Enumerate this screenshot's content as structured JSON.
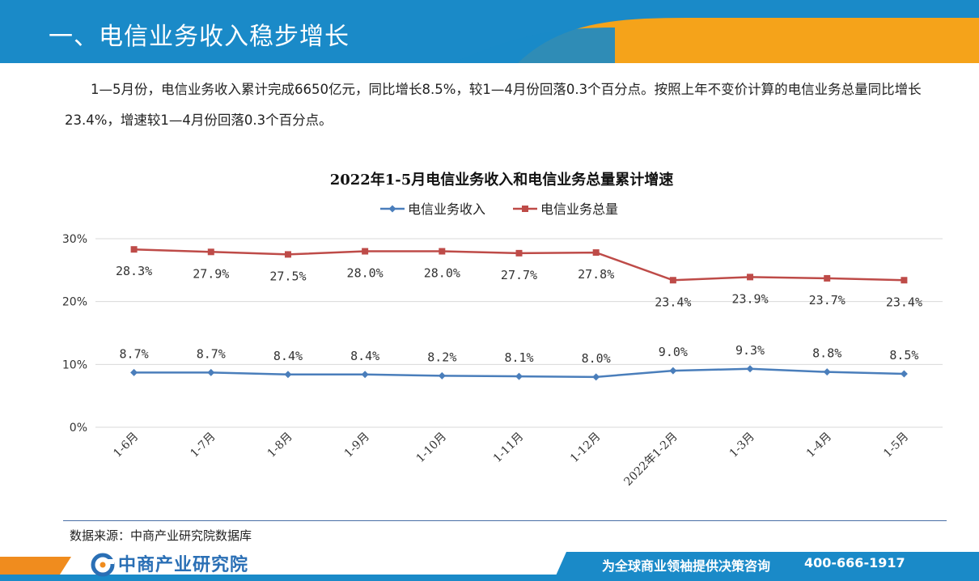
{
  "header": {
    "title": "一、电信业务收入稳步增长"
  },
  "intro": {
    "text": "1—5月份，电信业务收入累计完成6650亿元，同比增长8.5%，较1—4月份回落0.3个百分点。按照上年不变价计算的电信业务总量同比增长23.4%，增速较1—4月份回落0.3个百分点。"
  },
  "chart_data": {
    "type": "line",
    "title": "2022年1-5月电信业务收入和电信业务总量累计增速",
    "categories": [
      "1-6月",
      "1-7月",
      "1-8月",
      "1-9月",
      "1-10月",
      "1-11月",
      "1-12月",
      "2022年1-2月",
      "1-3月",
      "1-4月",
      "1-5月"
    ],
    "series": [
      {
        "name": "电信业务收入",
        "color": "#4a7ebb",
        "marker": "diamond",
        "values": [
          8.7,
          8.7,
          8.4,
          8.4,
          8.2,
          8.1,
          8.0,
          9.0,
          9.3,
          8.8,
          8.5
        ],
        "labels": [
          "8.7%",
          "8.7%",
          "8.4%",
          "8.4%",
          "8.2%",
          "8.1%",
          "8.0%",
          "9.0%",
          "9.3%",
          "8.8%",
          "8.5%"
        ]
      },
      {
        "name": "电信业务总量",
        "color": "#be4b48",
        "marker": "square",
        "values": [
          28.3,
          27.9,
          27.5,
          28.0,
          28.0,
          27.7,
          27.8,
          23.4,
          23.9,
          23.7,
          23.4
        ],
        "labels": [
          "28.3%",
          "27.9%",
          "27.5%",
          "28.0%",
          "28.0%",
          "27.7%",
          "27.8%",
          "23.4%",
          "23.9%",
          "23.7%",
          "23.4%"
        ]
      }
    ],
    "yticks": [
      "0%",
      "10%",
      "20%",
      "30%"
    ],
    "ylim": [
      0,
      30
    ],
    "grid": true,
    "legend": "top-center"
  },
  "source": {
    "text": "数据来源：中商产业研究院数据库"
  },
  "footer": {
    "logo": "中商产业研究院",
    "slogan": "为全球商业领袖提供决策咨询",
    "phone": "400-666-1917"
  },
  "colors": {
    "header_blue": "#1a8ac8",
    "header_orange": "#f5a31a",
    "footer_blue": "#1a8ac8",
    "footer_orange": "#f08c1e"
  }
}
